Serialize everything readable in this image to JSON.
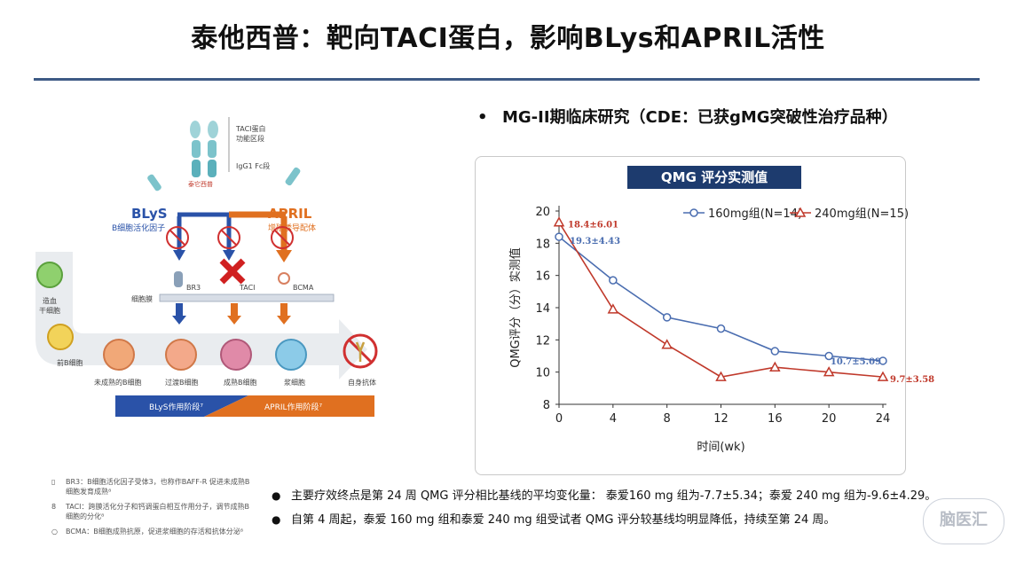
{
  "title": "泰他西普：靶向TACI蛋白，影响BLys和APRIL活性",
  "bullet_heading": "MG-II期临床研究（CDE：已获gMG突破性治疗品种）",
  "bullet_marker": "•",
  "chart_badge": "QMG 评分实测值",
  "chart_data": {
    "type": "line",
    "x": [
      0,
      4,
      8,
      12,
      16,
      20,
      24
    ],
    "xlabel": "时间(wk)",
    "ylabel": "QMG评分（分）实测值",
    "xlim": [
      0,
      24
    ],
    "ylim": [
      8,
      20
    ],
    "yticks": [
      8,
      10,
      12,
      14,
      16,
      18,
      20
    ],
    "xticks": [
      0,
      4,
      8,
      12,
      16,
      20,
      24
    ],
    "legend_position": "top",
    "series": [
      {
        "name": "160mg组(N=14)",
        "color": "#4a6db0",
        "marker": "circle",
        "values": [
          18.4,
          15.7,
          13.4,
          12.7,
          11.3,
          11.0,
          10.7
        ]
      },
      {
        "name": "240mg组(N=15)",
        "color": "#c0392b",
        "marker": "triangle",
        "values": [
          19.3,
          13.9,
          11.7,
          9.7,
          10.3,
          10.0,
          9.7
        ]
      }
    ],
    "annotations": [
      {
        "text": "18.4±6.01",
        "color": "#c0392b"
      },
      {
        "text": "19.3±4.43",
        "color": "#4a6db0"
      },
      {
        "text": "10.7±5.09",
        "color": "#4a6db0"
      },
      {
        "text": "9.7±3.58",
        "color": "#c0392b"
      }
    ]
  },
  "notes": [
    "主要疗效终点是第 24 周 QMG 评分相比基线的平均变化量： 泰爱160 mg 组为-7.7±5.34；泰爱 240 mg 组为-9.6±4.29。",
    "自第 4 周起，泰爱 160 mg 组和泰爱 240 mg 组受试者 QMG 评分较基线均明显降低，持续至第 24 周。"
  ],
  "note_marker": "●",
  "diagram": {
    "taci_domain": "TACI蛋白",
    "taci_domain2": "功能区段",
    "igg1": "IgG1 Fc段",
    "drug": "泰它西普",
    "blys": "BLyS",
    "blys_sub": "B细胞活化因子",
    "april": "APRIL",
    "april_sub": "增殖诱导配体",
    "br3": "BR3",
    "taci": "TACI",
    "bcma": "BCMA",
    "membrane": "细胞膜",
    "stem": "造血",
    "stem2": "干细胞",
    "preb": "前B细胞",
    "immature": "未成熟的B细胞",
    "transitional": "过渡B细胞",
    "mature": "成熟B细胞",
    "plasma": "浆细胞",
    "autoab": "自身抗体",
    "blys_phase": "BLyS作用阶段⁷",
    "april_phase": "APRIL作用阶段⁷"
  },
  "footnotes": [
    "BR3：B细胞活化因子受体3，也称作BAFF-R 促进未成熟B细胞发育成熟⁸",
    "TACI：跨膜活化分子和钙调蛋白相互作用分子，调节成熟B细胞的分化⁸",
    "BCMA：B细胞成熟抗原，促进浆细胞的存活和抗体分泌⁸"
  ],
  "watermark": "脑医汇"
}
